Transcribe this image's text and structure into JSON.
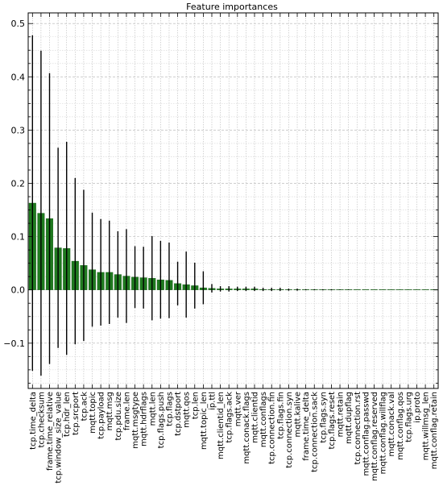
{
  "chart_data": {
    "type": "bar",
    "title": "Feature importances",
    "xlabel": "",
    "ylabel": "",
    "ylim": [
      -0.185,
      0.52
    ],
    "yticks": [
      -0.1,
      0.0,
      0.1,
      0.2,
      0.3,
      0.4,
      0.5
    ],
    "ytick_labels": [
      "−0.1",
      "0.0",
      "0.1",
      "0.2",
      "0.3",
      "0.4",
      "0.5"
    ],
    "grid": true,
    "bar_color": "#1f7a1f",
    "errorbar_color": "#000000",
    "categories": [
      "tcp.time_delta",
      "tcp.checksum",
      "frame.time_relative",
      "tcp.window_size_value",
      "tcp.hdr_len",
      "tcp.srcport",
      "tcp.ack",
      "mqtt.topic",
      "tcp.payload",
      "mqtt.msg",
      "tcp.pdu.size",
      "frame.len",
      "mqtt.msgtype",
      "mqtt.hdrflags",
      "mqtt.len",
      "tcp.flags.push",
      "tcp.flags",
      "tcp.dstport",
      "mqtt.qos",
      "tcp.len",
      "mqtt.topic_len",
      "ip.ttl",
      "mqtt.clientid_len",
      "tcp.flags.ack",
      "mqtt.ver",
      "mqtt.conack.flags",
      "mqtt.clientid",
      "mqtt.conflags",
      "tcp.connection.fin",
      "tcp.flags.fin",
      "tcp.connection.syn",
      "mqtt.kalive",
      "frame.time_delta",
      "tcp.connection.sack",
      "tcp.flags.syn",
      "tcp.flags.reset",
      "mqtt.retain",
      "mqtt.dupflag",
      "tcp.connection.rst",
      "mqtt.conflag.passwd",
      "mqtt.conflag.reserved",
      "mqtt.conflag.willflag",
      "mqtt.conack.val",
      "mqtt.conflag.qos",
      "tcp.flags.urg",
      "ip.proto",
      "mqtt.willmsg_len",
      "mqtt.conflag.retain"
    ],
    "values": [
      0.163,
      0.144,
      0.134,
      0.079,
      0.078,
      0.054,
      0.046,
      0.038,
      0.033,
      0.033,
      0.029,
      0.026,
      0.024,
      0.023,
      0.022,
      0.019,
      0.018,
      0.012,
      0.01,
      0.008,
      0.004,
      0.003,
      0.002,
      0.002,
      0.002,
      0.002,
      0.002,
      0.001,
      0.001,
      0.001,
      0.0005,
      0.0005,
      0.0003,
      0.0003,
      0.0002,
      0.0002,
      0.0001,
      0.0001,
      0.0,
      0.0,
      0.0,
      0.0,
      0.0,
      0.0,
      0.0,
      0.0,
      0.0,
      0.0
    ],
    "errors": [
      0.315,
      0.305,
      0.273,
      0.188,
      0.2,
      0.156,
      0.142,
      0.107,
      0.1,
      0.097,
      0.081,
      0.088,
      0.058,
      0.058,
      0.079,
      0.073,
      0.071,
      0.041,
      0.062,
      0.043,
      0.031,
      0.008,
      0.005,
      0.005,
      0.004,
      0.004,
      0.004,
      0.003,
      0.003,
      0.003,
      0.002,
      0.002,
      0.001,
      0.001,
      0.001,
      0.001,
      0.0005,
      0.0005,
      0.0,
      0.0,
      0.0,
      0.0,
      0.0,
      0.0,
      0.0,
      0.0,
      0.0,
      0.0
    ]
  }
}
